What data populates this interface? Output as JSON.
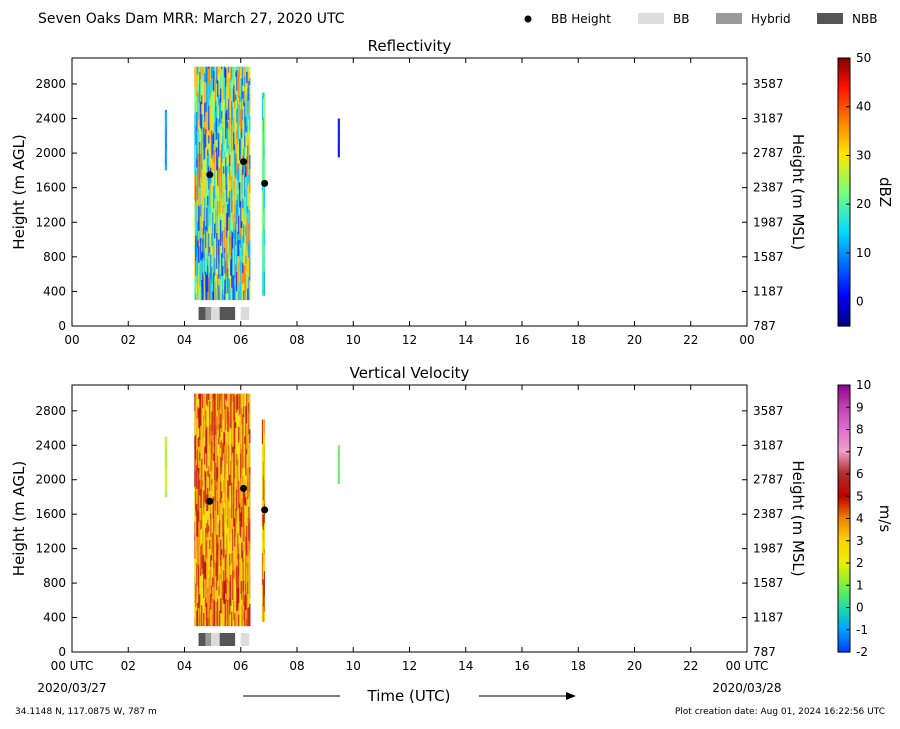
{
  "title": "Seven Oaks Dam MRR:  March 27, 2020 UTC",
  "legend": [
    {
      "label": "BB Height",
      "kind": "dot",
      "color": "#000000"
    },
    {
      "label": "BB",
      "kind": "box",
      "color": "#dcdcdc"
    },
    {
      "label": "Hybrid",
      "kind": "box",
      "color": "#9a9a9a"
    },
    {
      "label": "NBB",
      "kind": "box",
      "color": "#555555"
    }
  ],
  "footer": {
    "location": "34.1148 N, 117.0875 W, 787 m",
    "creation": "Plot creation date: Aug 01, 2024 16:22:56 UTC",
    "time_label": "Time (UTC)",
    "start_date": "2020/03/27",
    "end_date": "2020/03/28"
  },
  "chart_data": [
    {
      "type": "heatmap",
      "title": "Reflectivity",
      "ylabel": "Height (m AGL)",
      "y2label": "Height (m MSL)",
      "colorbar_label": "dBZ",
      "xlim": [
        0,
        24
      ],
      "ylim": [
        0,
        3100
      ],
      "xticks": [
        "00",
        "02",
        "04",
        "06",
        "08",
        "10",
        "12",
        "14",
        "16",
        "18",
        "20",
        "22",
        "00"
      ],
      "yticks": [
        0,
        400,
        800,
        1200,
        1600,
        2000,
        2400,
        2800
      ],
      "y2ticks": [
        787,
        1187,
        1587,
        1987,
        2387,
        2787,
        3187,
        3587
      ],
      "colorbar": {
        "min": -5,
        "max": 50,
        "ticks": [
          0,
          10,
          20,
          30,
          40,
          50
        ],
        "scheme": "jet"
      },
      "bb_height_points": [
        {
          "x": 4.9,
          "y": 1750
        },
        {
          "x": 6.1,
          "y": 1900
        },
        {
          "x": 6.85,
          "y": 1650
        }
      ],
      "bright_band_type": [
        {
          "start": 4.5,
          "end": 4.75,
          "type": "NBB"
        },
        {
          "start": 4.75,
          "end": 4.95,
          "type": "Hybrid"
        },
        {
          "start": 4.95,
          "end": 5.25,
          "type": "BB"
        },
        {
          "start": 5.25,
          "end": 5.8,
          "type": "NBB"
        },
        {
          "start": 5.8,
          "end": 6.0,
          "type": "none"
        },
        {
          "start": 6.0,
          "end": 6.3,
          "type": "BB"
        }
      ]
    },
    {
      "type": "heatmap",
      "title": "Vertical Velocity",
      "ylabel": "Height (m AGL)",
      "y2label": "Height (m MSL)",
      "colorbar_label": "m/s",
      "xlim": [
        0,
        24
      ],
      "ylim": [
        0,
        3100
      ],
      "xticks": [
        "00 UTC",
        "02",
        "04",
        "06",
        "08",
        "10",
        "12",
        "14",
        "16",
        "18",
        "20",
        "22",
        "00 UTC"
      ],
      "yticks": [
        0,
        400,
        800,
        1200,
        1600,
        2000,
        2400,
        2800
      ],
      "y2ticks": [
        787,
        1187,
        1587,
        1987,
        2387,
        2787,
        3187,
        3587
      ],
      "colorbar": {
        "min": -2,
        "max": 10,
        "ticks": [
          -2,
          -1,
          0,
          1,
          2,
          3,
          4,
          5,
          6,
          7,
          8,
          9,
          10
        ],
        "scheme": "velocity"
      },
      "bb_height_points": [
        {
          "x": 4.9,
          "y": 1750
        },
        {
          "x": 6.1,
          "y": 1900
        },
        {
          "x": 6.85,
          "y": 1650
        }
      ],
      "bright_band_type": [
        {
          "start": 4.5,
          "end": 4.75,
          "type": "NBB"
        },
        {
          "start": 4.75,
          "end": 4.95,
          "type": "Hybrid"
        },
        {
          "start": 4.95,
          "end": 5.25,
          "type": "BB"
        },
        {
          "start": 5.25,
          "end": 5.8,
          "type": "NBB"
        },
        {
          "start": 5.8,
          "end": 6.0,
          "type": "none"
        },
        {
          "start": 6.0,
          "end": 6.3,
          "type": "BB"
        }
      ]
    }
  ]
}
